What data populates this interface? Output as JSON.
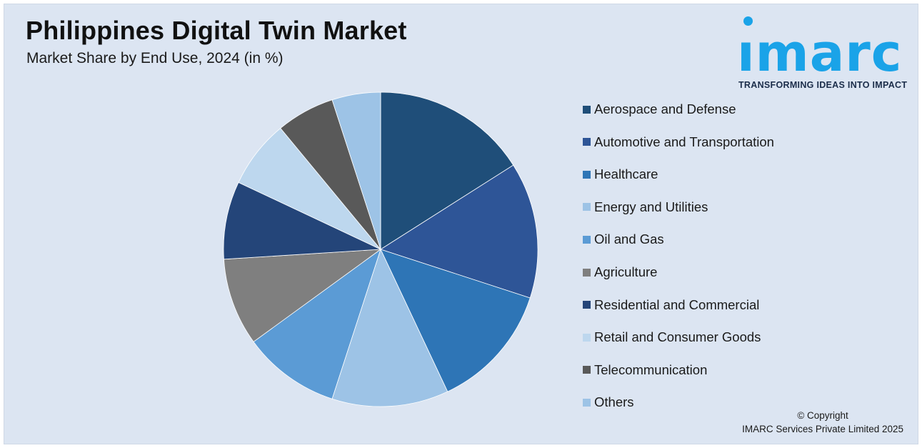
{
  "title": "Philippines Digital Twin Market",
  "subtitle": "Market Share by End Use, 2024 (in %)",
  "logo": {
    "word": "ımarc",
    "tagline": "TRANSFORMING IDEAS INTO IMPACT",
    "color": "#1aa3e8"
  },
  "copyright": {
    "line1": "© Copyright",
    "line2": "IMARC Services Private Limited 2025"
  },
  "chart_data": {
    "type": "pie",
    "legend_position": "right",
    "slices": [
      {
        "label": "Aerospace and Defense",
        "value": 16,
        "color": "#1f4e79"
      },
      {
        "label": "Automotive and Transportation",
        "value": 14,
        "color": "#2e5597"
      },
      {
        "label": "Healthcare",
        "value": 13,
        "color": "#2e75b6"
      },
      {
        "label": "Energy and Utilities",
        "value": 12,
        "color": "#9dc3e6"
      },
      {
        "label": "Oil and Gas",
        "value": 10,
        "color": "#5b9bd5"
      },
      {
        "label": "Agriculture",
        "value": 9,
        "color": "#7f7f7f"
      },
      {
        "label": "Residential and Commercial",
        "value": 8,
        "color": "#244579"
      },
      {
        "label": "Retail and Consumer Goods",
        "value": 7,
        "color": "#bdd7ee"
      },
      {
        "label": "Telecommunication",
        "value": 6,
        "color": "#595959"
      },
      {
        "label": "Others",
        "value": 5,
        "color": "#9dc3e6"
      }
    ]
  }
}
